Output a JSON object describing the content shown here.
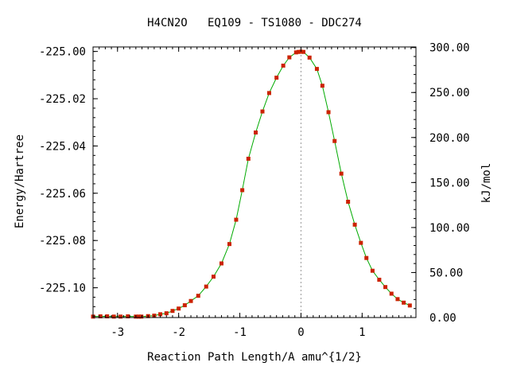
{
  "chart_data": {
    "type": "scatter",
    "title": "H4CN2O   EQ109 - TS1080 - DDC274",
    "xlabel": "Reaction Path Length/A amu^{1/2}",
    "ylabel": "Energy/Hartree",
    "y2label": "kJ/mol",
    "xlim": [
      -3.4,
      1.88
    ],
    "ylim": [
      -225.1126,
      -224.9981
    ],
    "y2lim": [
      0,
      300.6
    ],
    "x_ticks": [
      -3,
      -2,
      -1,
      0,
      1
    ],
    "x_tick_labels": [
      "-3",
      "-2",
      "-1",
      "0",
      "1"
    ],
    "y_ticks": [
      -225.0,
      -225.02,
      -225.04,
      -225.06,
      -225.08,
      -225.1
    ],
    "y_tick_labels": [
      "-225.00",
      "-225.02",
      "-225.04",
      "-225.06",
      "-225.08",
      "-225.10"
    ],
    "y2_ticks": [
      300,
      250,
      200,
      150,
      100,
      50,
      0
    ],
    "y2_tick_labels": [
      "300.00",
      "250.00",
      "200.00",
      "150.00",
      "100.00",
      "50.00",
      "0.00"
    ],
    "grid": false,
    "ts_marker_x": 0.0,
    "colors": {
      "curve": "#00aa00",
      "points": "#cc2200",
      "ts_line": "#999999",
      "axes": "#000000"
    },
    "series": [
      {
        "points": [
          [
            -3.4,
            -225.1122
          ],
          [
            -3.28,
            -225.1121
          ],
          [
            -3.17,
            -225.1121
          ],
          [
            -3.06,
            -225.1122
          ],
          [
            -2.95,
            -225.1122
          ],
          [
            -2.83,
            -225.1121
          ],
          [
            -2.7,
            -225.1122
          ],
          [
            -2.65,
            -225.1122
          ],
          [
            -2.61,
            -225.1122
          ],
          [
            -2.5,
            -225.112
          ],
          [
            -2.4,
            -225.1118
          ],
          [
            -2.3,
            -225.1112
          ],
          [
            -2.2,
            -225.1108
          ],
          [
            -2.1,
            -225.1098
          ],
          [
            -2.0,
            -225.1088
          ],
          [
            -1.9,
            -225.1074
          ],
          [
            -1.8,
            -225.1056
          ],
          [
            -1.68,
            -225.1034
          ],
          [
            -1.55,
            -225.0995
          ],
          [
            -1.43,
            -225.0953
          ],
          [
            -1.3,
            -225.0897
          ],
          [
            -1.17,
            -225.0815
          ],
          [
            -1.06,
            -225.0712
          ],
          [
            -0.96,
            -225.0587
          ],
          [
            -0.86,
            -225.0454
          ],
          [
            -0.74,
            -225.0343
          ],
          [
            -0.63,
            -225.0254
          ],
          [
            -0.52,
            -225.0176
          ],
          [
            -0.4,
            -225.0111
          ],
          [
            -0.29,
            -225.006
          ],
          [
            -0.19,
            -225.0025
          ],
          [
            -0.08,
            -225.0004
          ],
          [
            -0.04,
            -225.0002
          ],
          [
            0.0,
            -225.0001
          ],
          [
            0.04,
            -225.0002
          ],
          [
            0.14,
            -225.0026
          ],
          [
            0.26,
            -225.0074
          ],
          [
            0.35,
            -225.0145
          ],
          [
            0.45,
            -225.0257
          ],
          [
            0.55,
            -225.0379
          ],
          [
            0.66,
            -225.0517
          ],
          [
            0.77,
            -225.0636
          ],
          [
            0.88,
            -225.0733
          ],
          [
            0.98,
            -225.081
          ],
          [
            1.07,
            -225.0874
          ],
          [
            1.17,
            -225.0928
          ],
          [
            1.28,
            -225.0966
          ],
          [
            1.38,
            -225.0997
          ],
          [
            1.48,
            -225.1025
          ],
          [
            1.58,
            -225.1048
          ],
          [
            1.68,
            -225.1063
          ],
          [
            1.78,
            -225.1075
          ]
        ]
      }
    ]
  }
}
